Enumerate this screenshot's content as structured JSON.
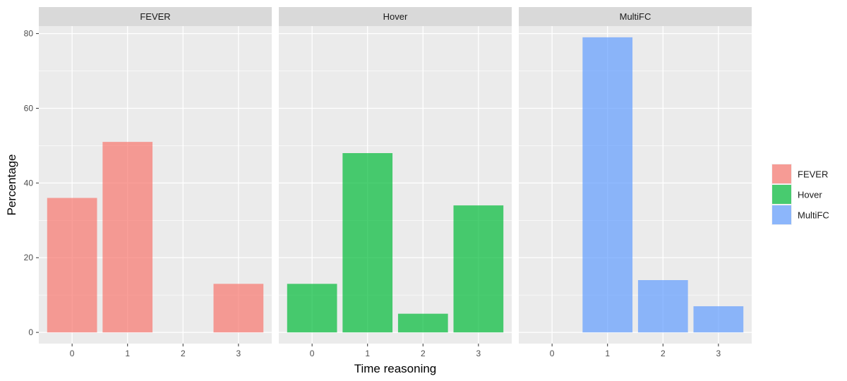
{
  "chart_data": {
    "type": "bar",
    "facets": [
      "FEVER",
      "Hover",
      "MultiFC"
    ],
    "categories": [
      "0",
      "1",
      "2",
      "3"
    ],
    "series": [
      {
        "name": "FEVER",
        "facet": "FEVER",
        "color": "#F8766D",
        "values": [
          36,
          51,
          0,
          13
        ]
      },
      {
        "name": "Hover",
        "facet": "Hover",
        "color": "#00BA38",
        "values": [
          13,
          48,
          5,
          34
        ]
      },
      {
        "name": "MultiFC",
        "facet": "MultiFC",
        "color": "#619CFF",
        "values": [
          0,
          79,
          14,
          7
        ]
      }
    ],
    "xlabel": "Time reasoning",
    "ylabel": "Percentage",
    "ylim": [
      -3,
      82
    ],
    "yticks": [
      0,
      20,
      40,
      60,
      80
    ],
    "grid": true,
    "legend_position": "right",
    "legend": [
      "FEVER",
      "Hover",
      "MultiFC"
    ],
    "bar_opacity": 0.7
  }
}
